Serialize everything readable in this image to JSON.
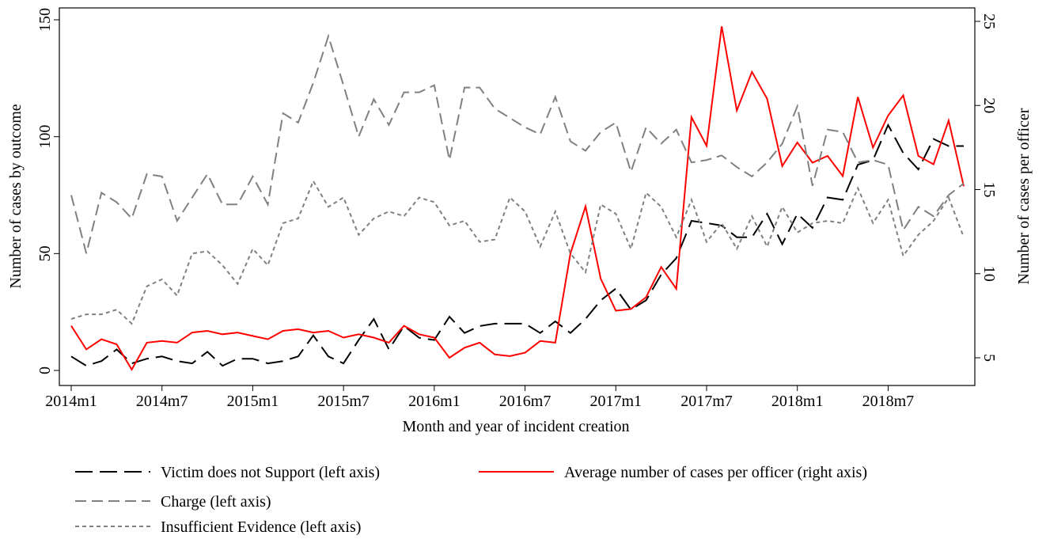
{
  "chart_data": {
    "type": "line",
    "x_label": "Month and year of incident creation",
    "y_label": "Number of cases by outcome",
    "y2_label": "Number of cases per officer",
    "categories": [
      "2014m1",
      null,
      null,
      null,
      null,
      null,
      "2014m7",
      null,
      null,
      null,
      null,
      null,
      "2015m1",
      null,
      null,
      null,
      null,
      null,
      "2015m7",
      null,
      null,
      null,
      null,
      null,
      "2016m1",
      null,
      null,
      null,
      null,
      null,
      "2016m7",
      null,
      null,
      null,
      null,
      null,
      "2017m1",
      null,
      null,
      null,
      null,
      null,
      "2017m7",
      null,
      null,
      null,
      null,
      null,
      "2018m1",
      null,
      null,
      null,
      null,
      null,
      "2018m7",
      null,
      null,
      null,
      null,
      null
    ],
    "ylim": [
      0,
      150
    ],
    "yticks": [
      0,
      50,
      100,
      150
    ],
    "y2lim": [
      5,
      25
    ],
    "y2ticks": [
      5,
      10,
      15,
      20,
      25
    ],
    "series": [
      {
        "name": "Victim does not Support (left axis)",
        "color": "#000000",
        "dash": "longdash",
        "values": [
          6,
          2,
          4,
          9,
          3,
          5,
          6,
          4,
          3,
          8,
          2,
          5,
          5,
          3,
          4,
          6,
          15,
          6,
          3,
          13,
          22,
          9,
          19,
          14,
          13,
          23,
          16,
          19,
          20,
          20,
          20,
          16,
          21,
          16,
          22,
          30,
          35,
          26,
          30,
          41,
          48,
          64,
          63,
          62,
          57,
          57,
          67,
          54,
          67,
          61,
          74,
          73,
          88,
          90,
          105,
          93,
          86,
          99,
          96,
          96
        ]
      },
      {
        "name": "Average number of cases per officer (right axis)",
        "color": "#ff0000",
        "dash": "solid",
        "axis": "y2",
        "values": [
          6.9,
          5.5,
          6.1,
          5.8,
          4.3,
          5.9,
          6.0,
          5.9,
          6.5,
          6.6,
          6.4,
          6.5,
          6.3,
          6.1,
          6.6,
          6.7,
          6.5,
          6.6,
          6.2,
          6.4,
          6.2,
          5.9,
          6.9,
          6.4,
          6.2,
          5.0,
          5.6,
          5.9,
          5.2,
          5.1,
          5.3,
          6.0,
          5.9,
          11.2,
          14.0,
          9.7,
          7.8,
          7.9,
          8.6,
          10.4,
          9.1,
          19.3,
          17.6,
          24.7,
          19.7,
          22.0,
          20.4,
          16.4,
          17.8,
          16.6,
          17.0,
          15.8,
          20.5,
          17.5,
          19.4,
          20.6,
          17.0,
          16.5,
          19.1,
          15.2
        ]
      },
      {
        "name": "Charge (left axis)",
        "color": "#808080",
        "dash": "dash",
        "values": [
          75,
          50,
          76,
          72,
          65,
          84,
          83,
          64,
          74,
          84,
          71,
          71,
          83,
          71,
          110,
          106,
          123,
          143,
          122,
          100,
          116,
          105,
          119,
          119,
          122,
          90,
          121,
          121,
          112,
          108,
          104,
          101,
          117,
          98,
          94,
          102,
          106,
          85,
          104,
          97,
          103,
          89,
          90,
          92,
          87,
          83,
          89,
          97,
          113,
          79,
          103,
          102,
          89,
          90,
          88,
          60,
          70,
          66,
          75,
          80
        ]
      },
      {
        "name": "Insufficient Evidence (left axis)",
        "color": "#808080",
        "dash": "dot",
        "values": [
          22,
          24,
          24,
          26,
          20,
          36,
          39,
          32,
          50,
          51,
          45,
          37,
          52,
          45,
          63,
          65,
          81,
          70,
          74,
          58,
          65,
          68,
          66,
          74,
          72,
          62,
          64,
          55,
          56,
          74,
          68,
          53,
          68,
          50,
          42,
          71,
          67,
          52,
          76,
          70,
          57,
          73,
          55,
          63,
          52,
          66,
          53,
          70,
          59,
          63,
          64,
          63,
          78,
          63,
          73,
          49,
          58,
          64,
          74,
          57
        ]
      }
    ]
  }
}
